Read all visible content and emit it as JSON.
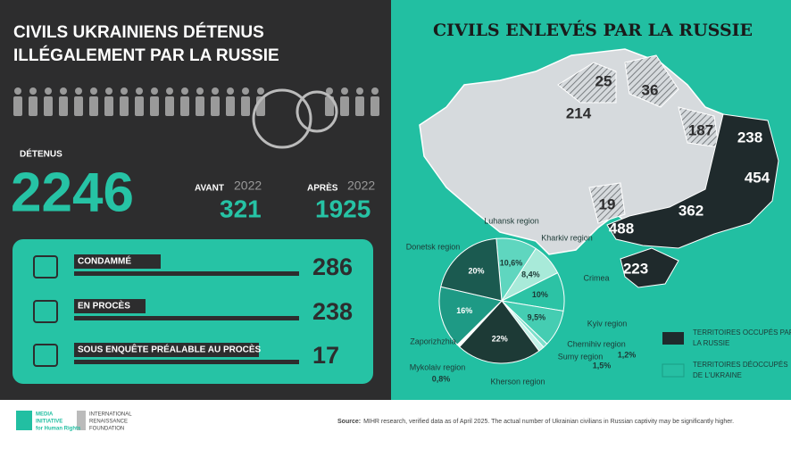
{
  "left": {
    "title_lines": [
      "CIVILS UKRAINIENS DÉTENUS",
      "ILLÉGALEMENT PAR LA RUSSIE"
    ],
    "detained_label": "DÉTENUS",
    "detained_total": 2246,
    "before_label": "AVANT",
    "before_year": 2022,
    "before_value": 321,
    "after_label": "APRÈS",
    "after_year": 2022,
    "after_value": 1925,
    "statuses": [
      {
        "label": "CONDAMMÉ",
        "value": 286
      },
      {
        "label": "EN PROCÈS",
        "value": 238
      },
      {
        "label": "SOUS ENQUÊTE PRÉALABLE AU PROCÈS",
        "value": 17
      }
    ]
  },
  "map": {
    "title": "CIVILS ENLEVÉS PAR LA RUSSIE",
    "regions": [
      25,
      36,
      214,
      187,
      238,
      454,
      19,
      362,
      488,
      223
    ],
    "legend": [
      {
        "label_lines": [
          "TERRITOIRES OCCUPÉS PAR",
          "LA RUSSIE"
        ],
        "color": "#1f2a2c"
      },
      {
        "label_lines": [
          "TERRITOIRES DÉOCCUPÉS",
          "DE L'UKRAINE"
        ],
        "color": "#26bfa3"
      }
    ]
  },
  "chart_data": {
    "type": "pie",
    "categories": [
      "Luhansk region",
      "Kharkiv region",
      "Crimea",
      "Kyiv region",
      "Chernihiv region",
      "Sumy region",
      "Kherson region",
      "Mykolaiv region",
      "Zaporizhzhia",
      "Donetsk region"
    ],
    "values": [
      10.6,
      8.4,
      10,
      9.5,
      1.2,
      1.5,
      22,
      0.8,
      16,
      20
    ],
    "value_labels": [
      "10,6%",
      "8,4%",
      "10%",
      "9,5%",
      "1,2%",
      "1,5%",
      "22%",
      "0,8%",
      "16%",
      "20%"
    ],
    "colors": [
      "#5fd6bf",
      "#a8ead9",
      "#2cc3a5",
      "#45cdb2",
      "#7de0cc",
      "#c2f2e8",
      "#1d3a36",
      "#ffffff",
      "#1e9a85",
      "#1b5a50"
    ]
  },
  "footer": {
    "logo1_lines": [
      "MEDIA",
      "INITIATIVE",
      "for Human Rights"
    ],
    "logo2_lines": [
      "INTERNATIONAL",
      "RENAISSANCE",
      "FOUNDATION"
    ],
    "source_label": "Source:",
    "source_text": "MIHR research, verified data as of April 2025. The actual number of Ukrainian civilians in Russian captivity may be significantly higher."
  }
}
